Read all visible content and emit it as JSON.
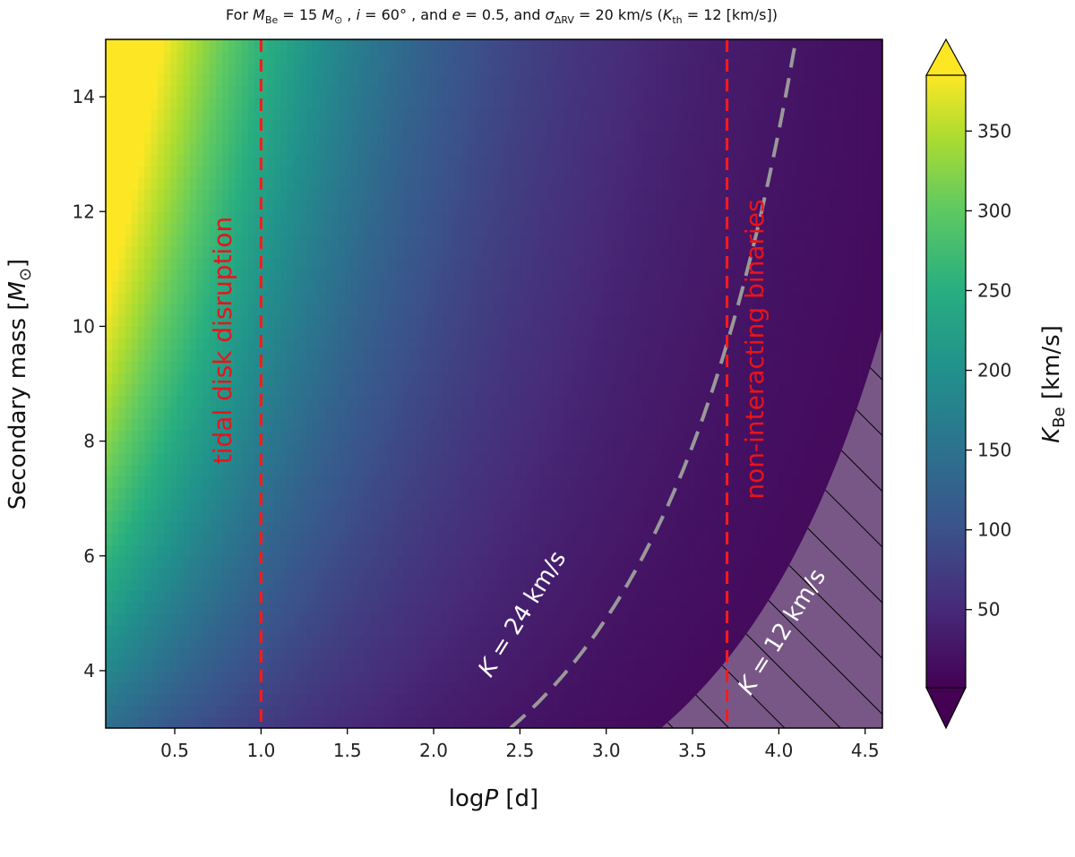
{
  "chart_data": {
    "type": "heatmap",
    "title": "For M_Be = 15 M_⊙ , i = 60° , and e = 0.5, and σ_ΔRV = 20 km/s (K_th = 12 [km/s])",
    "title_parts": {
      "p1": "For ",
      "M": "M",
      "be_sub": "Be",
      "p2": " = 15 ",
      "M2": "M",
      "sun": "⊙",
      "p3": " , ",
      "i": "i",
      "p4": " = 60° , and ",
      "e": "e",
      "p5": " = 0.5, and ",
      "sigma": "σ",
      "drv_sub": "ΔRV",
      "p6": " = 20 km/s (",
      "K": "K",
      "th_sub": "th",
      "p7": " = 12 [km/s])"
    },
    "xlabel": "log P [d]",
    "xlabel_parts": {
      "log": "log",
      "P": "P",
      "unit": " [d]"
    },
    "ylabel": "Secondary mass [M_⊙]",
    "ylabel_parts": {
      "text": "Secondary mass [",
      "M": "M",
      "sun": "⊙",
      "close": "]"
    },
    "xlim": [
      0.1,
      4.6
    ],
    "ylim": [
      3,
      15
    ],
    "xticks": [
      {
        "value": 0.5,
        "label": "0.5"
      },
      {
        "value": 1.0,
        "label": "1.0"
      },
      {
        "value": 1.5,
        "label": "1.5"
      },
      {
        "value": 2.0,
        "label": "2.0"
      },
      {
        "value": 2.5,
        "label": "2.5"
      },
      {
        "value": 3.0,
        "label": "3.0"
      },
      {
        "value": 3.5,
        "label": "3.5"
      },
      {
        "value": 4.0,
        "label": "4.0"
      },
      {
        "value": 4.5,
        "label": "4.5"
      }
    ],
    "yticks": [
      {
        "value": 4,
        "label": "4"
      },
      {
        "value": 6,
        "label": "6"
      },
      {
        "value": 8,
        "label": "8"
      },
      {
        "value": 10,
        "label": "10"
      },
      {
        "value": 12,
        "label": "12"
      },
      {
        "value": 14,
        "label": "14"
      }
    ],
    "colormap": "viridis",
    "colorbar": {
      "label": "K_Be [km/s]",
      "label_parts": {
        "K": "K",
        "sub": "Be",
        "unit": " [km/s]"
      },
      "range": [
        1,
        385
      ],
      "extend": "both",
      "ticks": [
        {
          "value": 50,
          "label": "50"
        },
        {
          "value": 100,
          "label": "100"
        },
        {
          "value": 150,
          "label": "150"
        },
        {
          "value": 200,
          "label": "200"
        },
        {
          "value": 250,
          "label": "250"
        },
        {
          "value": 300,
          "label": "300"
        },
        {
          "value": 350,
          "label": "350"
        }
      ]
    },
    "vertical_lines": [
      {
        "x": 1.0,
        "color": "#ff1a1a",
        "style": "dashed",
        "label": "tidal disk disruption"
      },
      {
        "x": 3.7,
        "color": "#ff1a1a",
        "style": "dashed",
        "label": "non-interacting binaries"
      }
    ],
    "contours": [
      {
        "level": 24,
        "label": "K = 24 km/s",
        "label_parts": {
          "K": "K",
          "rest": " = 24 km/s"
        },
        "color": "#999999",
        "style": "dashed"
      },
      {
        "level": 12,
        "label": "K = 12 km/s",
        "label_parts": {
          "K": "K",
          "rest": " = 12 km/s"
        },
        "color": "#ffffff",
        "style": "boundary",
        "hatched_region": "K < 12 km/s"
      }
    ]
  }
}
